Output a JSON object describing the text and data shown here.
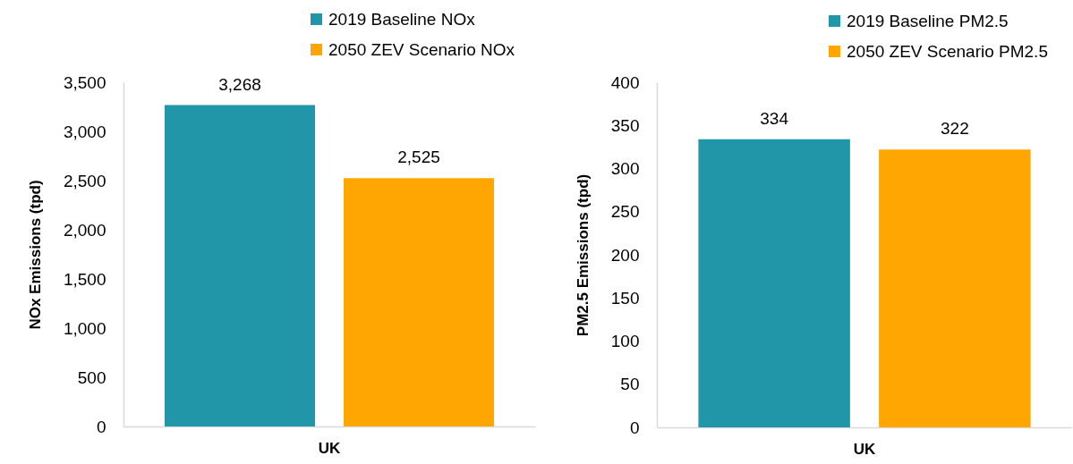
{
  "chart_data": [
    {
      "type": "bar",
      "categories": [
        "UK"
      ],
      "ylabel": "NOx Emissions (tpd)",
      "ylim": [
        0,
        3500
      ],
      "yticks": [
        0,
        500,
        {
          "value": 1000,
          "label": "1,000"
        },
        {
          "value": 1500,
          "label": "1,500"
        },
        {
          "value": 2000,
          "label": "2,000"
        },
        {
          "value": 2500,
          "label": "2,500"
        },
        {
          "value": 3000,
          "label": "3,000"
        },
        {
          "value": 3500,
          "label": "3,500"
        }
      ],
      "legend": "top right",
      "series": [
        {
          "name": "2019 Baseline NOx",
          "color": "#2196a9",
          "values": [
            3268
          ],
          "value_labels": [
            "3,268"
          ]
        },
        {
          "name": "2050 ZEV Scenario NOx",
          "color": "#ffa602",
          "values": [
            2525
          ],
          "value_labels": [
            "2,525"
          ]
        }
      ]
    },
    {
      "type": "bar",
      "categories": [
        "UK"
      ],
      "ylabel": "PM2.5 Emissions (tpd)",
      "ylim": [
        0,
        400
      ],
      "yticks": [
        0,
        50,
        100,
        150,
        200,
        250,
        300,
        350,
        400
      ],
      "legend": "top right",
      "data_labels": true,
      "series": [
        {
          "name": "2019 Baseline PM2.5",
          "color": "#2196a9",
          "values": [
            334
          ]
        },
        {
          "name": "2050 ZEV Scenario PM2.5",
          "color": "#ffa602",
          "values": [
            322
          ]
        }
      ]
    }
  ]
}
